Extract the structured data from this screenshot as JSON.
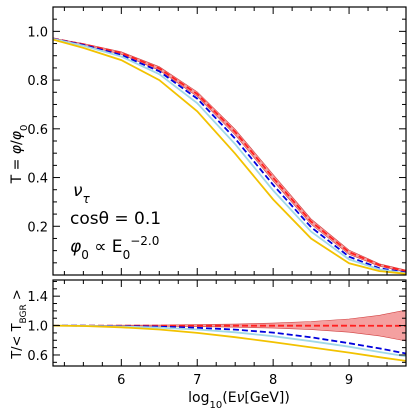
{
  "chart_data": [
    {
      "type": "line",
      "panel": "main",
      "ylabel_parts": [
        "T = ",
        "φ",
        "/",
        "φ",
        "0"
      ],
      "xlim": [
        5.1,
        9.75
      ],
      "ylim": [
        0.0,
        1.1
      ],
      "yticks": [
        0.2,
        0.4,
        0.6,
        0.8,
        1.0
      ],
      "ytick_labels": [
        "0.2",
        "0.4",
        "0.6",
        "0.8",
        "1.0"
      ],
      "grid": false,
      "annotations": {
        "flavor": {
          "base": "ν",
          "sub": "τ"
        },
        "angle": "cosθ = 0.1",
        "spectrum": {
          "lhs": "φ",
          "lhs_sub": "0",
          "mid": " ∝ E",
          "mid_sub": "0",
          "sup": "−2.0"
        }
      },
      "series": [
        {
          "style": "band",
          "color": "#f08080",
          "x": [
            5.1,
            5.5,
            6.0,
            6.5,
            7.0,
            7.5,
            8.0,
            8.5,
            9.0,
            9.4,
            9.75
          ],
          "upper": [
            0.972,
            0.95,
            0.916,
            0.855,
            0.752,
            0.598,
            0.412,
            0.23,
            0.102,
            0.046,
            0.02
          ],
          "lower": [
            0.97,
            0.944,
            0.906,
            0.84,
            0.733,
            0.575,
            0.386,
            0.208,
            0.085,
            0.036,
            0.012
          ]
        },
        {
          "style": "dashed",
          "color": "#ff2020",
          "x": [
            5.1,
            5.5,
            6.0,
            6.5,
            7.0,
            7.5,
            8.0,
            8.5,
            9.0,
            9.4,
            9.75
          ],
          "y": [
            0.971,
            0.947,
            0.911,
            0.848,
            0.743,
            0.587,
            0.399,
            0.219,
            0.094,
            0.041,
            0.016
          ]
        },
        {
          "style": "dashed",
          "color": "#0000dd",
          "x": [
            5.1,
            5.5,
            6.0,
            6.5,
            7.0,
            7.5,
            8.0,
            8.5,
            9.0,
            9.4,
            9.75
          ],
          "y": [
            0.97,
            0.944,
            0.903,
            0.836,
            0.724,
            0.56,
            0.37,
            0.196,
            0.075,
            0.028,
            0.01
          ]
        },
        {
          "style": "solid",
          "color": "#a0d8e8",
          "x": [
            5.1,
            5.5,
            6.0,
            6.5,
            7.0,
            7.5,
            8.0,
            8.5,
            9.0,
            9.4,
            9.75
          ],
          "y": [
            0.969,
            0.941,
            0.897,
            0.824,
            0.705,
            0.537,
            0.347,
            0.178,
            0.064,
            0.023,
            0.007
          ]
        },
        {
          "style": "solid",
          "color": "#f2c200",
          "x": [
            5.1,
            5.5,
            6.0,
            6.5,
            7.0,
            7.5,
            8.0,
            8.5,
            9.0,
            9.4,
            9.75
          ],
          "y": [
            0.966,
            0.932,
            0.882,
            0.8,
            0.672,
            0.498,
            0.31,
            0.15,
            0.048,
            0.016,
            0.005
          ]
        }
      ]
    },
    {
      "type": "line",
      "panel": "ratio",
      "ylabel_parts": [
        "T/< T",
        "BGR",
        " >"
      ],
      "xlabel_parts": [
        "log",
        "10",
        "(E",
        "ν",
        "[GeV])"
      ],
      "xlim": [
        5.1,
        9.75
      ],
      "ylim": [
        0.45,
        1.62
      ],
      "xticks": [
        6,
        7,
        8,
        9
      ],
      "xtick_labels": [
        "6",
        "7",
        "8",
        "9"
      ],
      "yticks": [
        0.6,
        1.0,
        1.4
      ],
      "ytick_labels": [
        "0.6",
        "1.0",
        "1.4"
      ],
      "grid": false,
      "series": [
        {
          "style": "band",
          "color": "#f08080",
          "x": [
            5.1,
            5.5,
            6.0,
            6.5,
            7.0,
            7.5,
            8.0,
            8.5,
            9.0,
            9.4,
            9.75
          ],
          "upper": [
            1.0,
            1.002,
            1.005,
            1.008,
            1.013,
            1.02,
            1.033,
            1.055,
            1.09,
            1.14,
            1.21
          ],
          "lower": [
            1.0,
            0.998,
            0.995,
            0.991,
            0.986,
            0.978,
            0.965,
            0.945,
            0.91,
            0.86,
            0.79
          ]
        },
        {
          "style": "dashed",
          "color": "#ff2020",
          "x": [
            5.1,
            5.5,
            6.0,
            6.5,
            7.0,
            7.5,
            8.0,
            8.5,
            9.0,
            9.4,
            9.75
          ],
          "y": [
            1.0,
            1.0,
            1.0,
            0.999,
            0.999,
            0.998,
            0.998,
            0.998,
            0.998,
            0.997,
            0.997
          ]
        },
        {
          "style": "dashed",
          "color": "#0000dd",
          "x": [
            5.1,
            5.5,
            6.0,
            6.5,
            7.0,
            7.5,
            8.0,
            8.5,
            9.0,
            9.4,
            9.75
          ],
          "y": [
            1.0,
            0.998,
            0.993,
            0.985,
            0.97,
            0.945,
            0.905,
            0.84,
            0.76,
            0.69,
            0.62
          ]
        },
        {
          "style": "solid",
          "color": "#a0d8e8",
          "x": [
            5.1,
            5.5,
            6.0,
            6.5,
            7.0,
            7.5,
            8.0,
            8.5,
            9.0,
            9.4,
            9.75
          ],
          "y": [
            1.0,
            0.997,
            0.988,
            0.972,
            0.946,
            0.908,
            0.856,
            0.788,
            0.712,
            0.64,
            0.58
          ]
        },
        {
          "style": "solid",
          "color": "#f2c200",
          "x": [
            5.1,
            5.5,
            6.0,
            6.5,
            7.0,
            7.5,
            8.0,
            8.5,
            9.0,
            9.4,
            9.75
          ],
          "y": [
            1.0,
            0.994,
            0.976,
            0.946,
            0.9,
            0.842,
            0.775,
            0.703,
            0.632,
            0.57,
            0.52
          ]
        }
      ]
    }
  ]
}
